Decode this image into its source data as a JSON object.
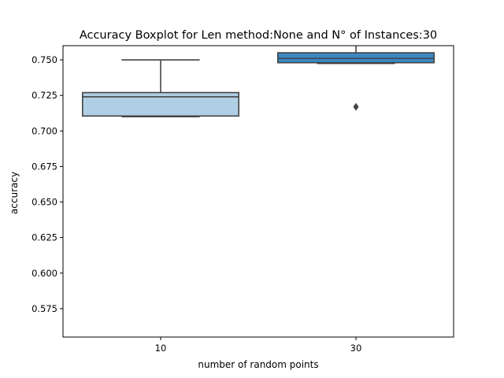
{
  "chart_data": {
    "type": "box",
    "title": "Accuracy Boxplot for Len method:None and N° of Instances:30",
    "xlabel": "number of random points",
    "ylabel": "accuracy",
    "categories": [
      "10",
      "30"
    ],
    "ylim": [
      0.555,
      0.76
    ],
    "yticks": [
      "0.575",
      "0.600",
      "0.625",
      "0.650",
      "0.675",
      "0.700",
      "0.725",
      "0.750"
    ],
    "grid": false,
    "boxes": [
      {
        "category": "10",
        "whisker_low": 0.71,
        "q1": 0.7105,
        "median": 0.724,
        "q3": 0.727,
        "whisker_high": 0.75,
        "outliers": [],
        "color": "#b0cfe4"
      },
      {
        "category": "30",
        "whisker_low": 0.7475,
        "q1": 0.748,
        "median": 0.751,
        "q3": 0.755,
        "whisker_high": 0.762,
        "outliers": [
          0.717
        ],
        "color": "#3b88c2"
      }
    ]
  }
}
